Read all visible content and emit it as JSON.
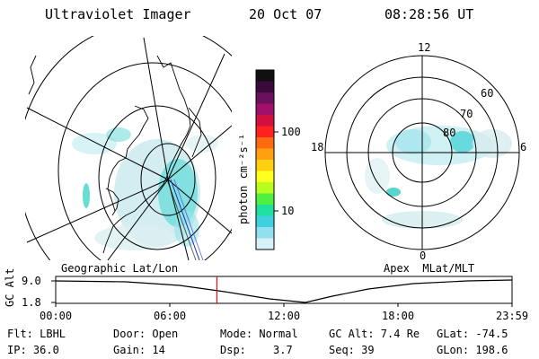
{
  "header": {
    "instrument": "Ultraviolet Imager",
    "date": "20 Oct 07",
    "time": "08:28:56 UT"
  },
  "colorbar": {
    "unit_label": "photon cm⁻²s⁻¹",
    "ticks": [
      "100",
      "10"
    ],
    "colors": [
      "#101010",
      "#3a0a3a",
      "#6a0f5a",
      "#a0106a",
      "#d21040",
      "#ff2020",
      "#ff6a10",
      "#ffa010",
      "#ffd010",
      "#ffff20",
      "#b8ff20",
      "#50f040",
      "#20e0a0",
      "#40d0e0",
      "#90e0f0",
      "#d8f0f8"
    ]
  },
  "left_panel": {
    "label": "Geographic Lat/Lon"
  },
  "right_panel": {
    "label": "Apex  MLat/MLT",
    "mlt_labels": {
      "top": "12",
      "left": "18",
      "right": "6",
      "bottom": "0"
    },
    "lat_labels": [
      "60",
      "70",
      "80"
    ]
  },
  "altitude_plot": {
    "ylabel": "GC Alt",
    "yticks": [
      "9.0",
      "1.8"
    ],
    "xticks": [
      "00:00",
      "06:00",
      "12:00",
      "18:00",
      "23:59"
    ],
    "marker_time_hours": 8.48
  },
  "info": {
    "flt": "Flt: LBHL",
    "door": "Door: Open",
    "mode": "Mode: Normal",
    "gc_alt": "GC Alt: 7.4 Re",
    "glat": "GLat: -74.5",
    "ip": "IP: 36.0",
    "gain": "Gain: 14",
    "dsp_label": "Dsp:",
    "dsp_value": "3.7",
    "seq": "Seq: 39",
    "glon": "GLon: 198.6"
  }
}
